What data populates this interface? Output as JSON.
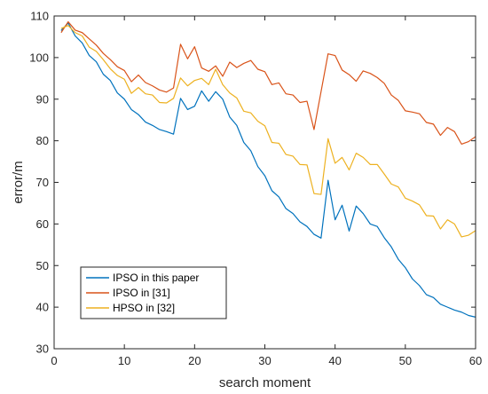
{
  "chart_data": {
    "type": "line",
    "title": "",
    "xlabel": "search moment",
    "ylabel": "error/m",
    "xlim": [
      0,
      60
    ],
    "ylim": [
      30,
      110
    ],
    "xticks": [
      0,
      10,
      20,
      30,
      40,
      50,
      60
    ],
    "yticks": [
      30,
      40,
      50,
      60,
      70,
      80,
      90,
      100,
      110
    ],
    "grid": false,
    "legend_position": "bottom-left",
    "x": [
      1,
      2,
      3,
      4,
      5,
      6,
      7,
      8,
      9,
      10,
      11,
      12,
      13,
      14,
      15,
      16,
      17,
      18,
      19,
      20,
      21,
      22,
      23,
      24,
      25,
      26,
      27,
      28,
      29,
      30,
      31,
      32,
      33,
      34,
      35,
      36,
      37,
      38,
      39,
      40,
      41,
      42,
      43,
      44,
      45,
      46,
      47,
      48,
      49,
      50,
      51,
      52,
      53,
      54,
      55,
      56,
      57,
      58,
      59,
      60
    ],
    "series": [
      {
        "name": "IPSO in this paper",
        "color": "#0072BD",
        "values": [
          106.5,
          108.3,
          105.2,
          103.5,
          100.5,
          99.0,
          96.0,
          94.5,
          91.5,
          90.0,
          87.5,
          86.3,
          84.5,
          83.7,
          82.7,
          82.2,
          81.6,
          90.2,
          87.5,
          88.3,
          92.0,
          89.5,
          91.8,
          90.0,
          85.7,
          83.7,
          79.6,
          77.6,
          73.8,
          71.6,
          68.0,
          66.5,
          63.7,
          62.5,
          60.5,
          59.4,
          57.5,
          56.6,
          70.5,
          61.0,
          64.5,
          58.3,
          64.3,
          62.5,
          60.0,
          59.4,
          56.7,
          54.5,
          51.5,
          49.5,
          46.8,
          45.2,
          43.0,
          42.3,
          40.7,
          40.0,
          39.3,
          38.8,
          38.0,
          37.6
        ]
      },
      {
        "name": "IPSO in [31]",
        "color": "#D95319",
        "values": [
          106.0,
          108.6,
          106.6,
          106.0,
          104.5,
          103.0,
          101.0,
          99.5,
          97.8,
          96.9,
          94.2,
          95.8,
          94.0,
          93.2,
          92.2,
          91.7,
          92.7,
          103.2,
          99.7,
          102.6,
          97.5,
          96.7,
          98.0,
          95.5,
          98.9,
          97.6,
          98.6,
          99.3,
          97.2,
          96.6,
          93.5,
          93.9,
          91.3,
          91.0,
          89.2,
          89.5,
          82.7,
          91.8,
          100.9,
          100.5,
          97.0,
          95.9,
          94.3,
          96.8,
          96.2,
          95.2,
          93.8,
          91.0,
          89.7,
          87.2,
          86.9,
          86.5,
          84.4,
          84.0,
          81.3,
          83.2,
          82.2,
          79.2,
          79.8,
          81.0
        ]
      },
      {
        "name": "HPSO in [32]",
        "color": "#EDB120",
        "values": [
          107.0,
          107.7,
          106.0,
          105.2,
          102.5,
          101.5,
          99.5,
          97.3,
          95.7,
          94.8,
          91.4,
          92.8,
          91.3,
          91.0,
          89.2,
          89.1,
          90.2,
          95.1,
          93.2,
          94.5,
          95.0,
          93.5,
          97.2,
          93.5,
          91.5,
          90.3,
          87.1,
          86.7,
          84.7,
          83.6,
          79.6,
          79.4,
          76.7,
          76.3,
          74.3,
          74.2,
          67.3,
          67.1,
          80.5,
          74.6,
          76.0,
          73.0,
          77.0,
          76.0,
          74.3,
          74.3,
          72.0,
          69.6,
          68.9,
          66.2,
          65.5,
          64.6,
          62.0,
          61.9,
          58.8,
          61.0,
          60.0,
          56.9,
          57.3,
          58.4
        ]
      }
    ]
  }
}
